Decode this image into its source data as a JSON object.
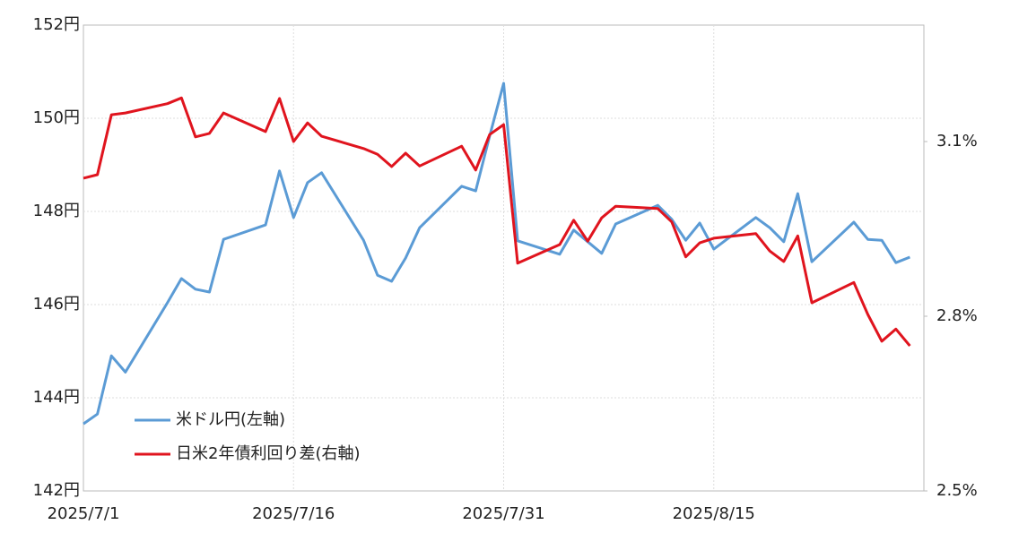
{
  "chart_data": {
    "type": "line",
    "x": [
      "2025-07-01",
      "2025-07-02",
      "2025-07-03",
      "2025-07-04",
      "2025-07-07",
      "2025-07-08",
      "2025-07-09",
      "2025-07-10",
      "2025-07-11",
      "2025-07-14",
      "2025-07-15",
      "2025-07-16",
      "2025-07-17",
      "2025-07-18",
      "2025-07-21",
      "2025-07-22",
      "2025-07-23",
      "2025-07-24",
      "2025-07-25",
      "2025-07-28",
      "2025-07-29",
      "2025-07-30",
      "2025-07-31",
      "2025-08-01",
      "2025-08-04",
      "2025-08-05",
      "2025-08-06",
      "2025-08-07",
      "2025-08-08",
      "2025-08-11",
      "2025-08-12",
      "2025-08-13",
      "2025-08-14",
      "2025-08-15",
      "2025-08-18",
      "2025-08-19",
      "2025-08-20",
      "2025-08-21",
      "2025-08-22",
      "2025-08-25",
      "2025-08-26",
      "2025-08-27",
      "2025-08-28",
      "2025-08-29"
    ],
    "xlim": [
      "2025-07-01",
      "2025-08-30"
    ],
    "xticks": [
      {
        "value": "2025-07-01",
        "label": "2025/7/1"
      },
      {
        "value": "2025-07-16",
        "label": "2025/7/16"
      },
      {
        "value": "2025-07-31",
        "label": "2025/7/31"
      },
      {
        "value": "2025-08-15",
        "label": "2025/8/15"
      }
    ],
    "ylim": [
      142,
      152
    ],
    "yticks": [
      {
        "value": 142,
        "label": "142円"
      },
      {
        "value": 144,
        "label": "144円"
      },
      {
        "value": 146,
        "label": "146円"
      },
      {
        "value": 148,
        "label": "148円"
      },
      {
        "value": 150,
        "label": "150円"
      },
      {
        "value": 152,
        "label": "152円"
      }
    ],
    "y2lim": [
      2.5,
      3.3
    ],
    "y2ticks": [
      {
        "value": 2.5,
        "label": "2.5%"
      },
      {
        "value": 2.8,
        "label": "2.8%"
      },
      {
        "value": 3.1,
        "label": "3.1%"
      }
    ],
    "grid": true,
    "legend": "lower left",
    "series": [
      {
        "name": "米ドル円(左軸)",
        "color": "#5b9bd5",
        "values": [
          143.44,
          143.65,
          144.9,
          144.55,
          146.04,
          146.56,
          146.33,
          146.27,
          147.4,
          147.71,
          148.87,
          147.87,
          148.62,
          148.83,
          147.38,
          146.63,
          146.5,
          147.0,
          147.65,
          148.54,
          148.44,
          149.62,
          150.75,
          147.37,
          147.08,
          147.6,
          147.35,
          147.1,
          147.73,
          148.13,
          147.83,
          147.38,
          147.75,
          147.19,
          147.87,
          147.65,
          147.35,
          148.38,
          146.92,
          147.77,
          147.4,
          147.38,
          146.9,
          147.02
        ]
      },
      {
        "name": "日米2年債利回り差(右軸)",
        "color": "#e0141e",
        "axis": "y2",
        "values": [
          3.037,
          3.043,
          3.146,
          3.149,
          3.165,
          3.175,
          3.108,
          3.114,
          3.149,
          3.117,
          3.174,
          3.1,
          3.132,
          3.109,
          3.088,
          3.078,
          3.057,
          3.08,
          3.058,
          3.092,
          3.051,
          3.112,
          3.129,
          2.891,
          2.923,
          2.965,
          2.929,
          2.969,
          2.989,
          2.985,
          2.962,
          2.902,
          2.926,
          2.934,
          2.942,
          2.912,
          2.894,
          2.938,
          2.823,
          2.858,
          2.803,
          2.757,
          2.778,
          2.749
        ]
      }
    ]
  }
}
